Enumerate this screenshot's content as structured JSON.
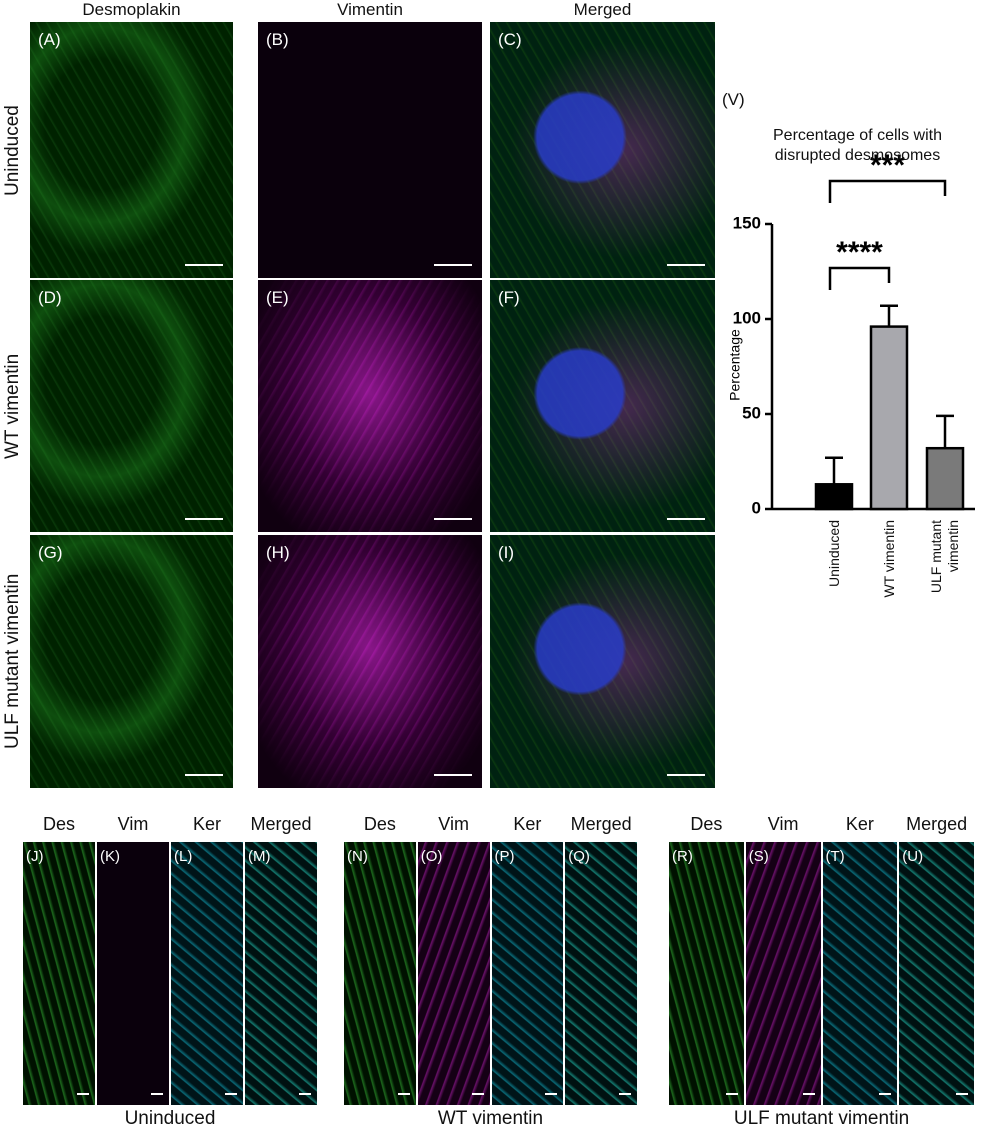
{
  "column_headers": [
    "Desmoplakin",
    "Vimentin",
    "Merged"
  ],
  "row_labels": [
    "Uninduced",
    "WT vimentin",
    "ULF mutant vimentin"
  ],
  "panels": [
    [
      "(A)",
      "(B)",
      "(C)"
    ],
    [
      "(D)",
      "(E)",
      "(F)"
    ],
    [
      "(G)",
      "(H)",
      "(I)"
    ]
  ],
  "strip_headers": [
    "Des",
    "Vim",
    "Ker",
    "Merged"
  ],
  "strip_groups": [
    {
      "label": "Uninduced",
      "panels": [
        "(J)",
        "(K)",
        "(L)",
        "(M)"
      ]
    },
    {
      "label": "WT vimentin",
      "panels": [
        "(N)",
        "(O)",
        "(P)",
        "(Q)"
      ]
    },
    {
      "label": "ULF mutant vimentin",
      "panels": [
        "(R)",
        "(S)",
        "(T)",
        "(U)"
      ]
    }
  ],
  "chart_data": {
    "type": "bar",
    "panel_label": "(V)",
    "title": "Percentage of cells with disrupted desmosomes",
    "y_label": "Percentage",
    "categories": [
      "Uninduced",
      "WT vimentin",
      "ULF mutant vimentin"
    ],
    "values": [
      13,
      96,
      32
    ],
    "errors": [
      14,
      11,
      17
    ],
    "colors": [
      "#000000",
      "#a8a8ad",
      "#7a7a7a"
    ],
    "ylim": [
      0,
      150
    ],
    "yticks": [
      0,
      50,
      100,
      150
    ],
    "comparisons": [
      {
        "label": "****",
        "pair": [
          0,
          1
        ]
      },
      {
        "label": "***",
        "pair": [
          0,
          2
        ]
      }
    ]
  }
}
